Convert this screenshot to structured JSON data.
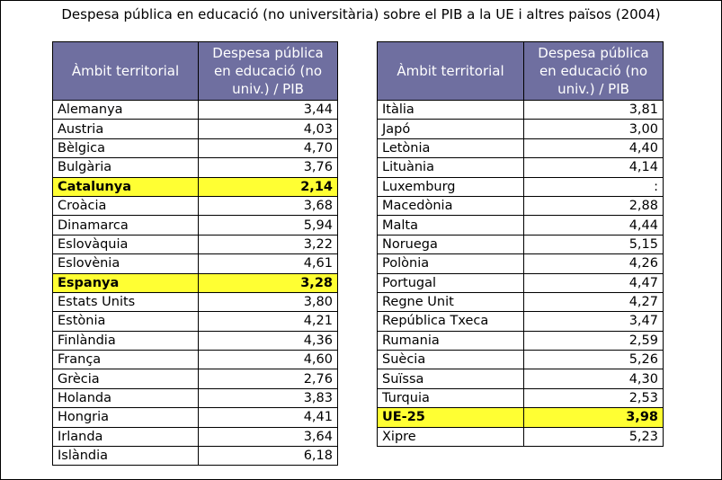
{
  "title": "Despesa pública en educació (no universitària) sobre el PIB a la UE i altres països (2004)",
  "highlight_color": "#ffff33",
  "header_color": "#6f6fa0",
  "columns": {
    "territory": "Àmbit territorial",
    "value": "Despesa pública en educació (no univ.) / PIB"
  },
  "left_table": [
    {
      "name": "Alemanya",
      "value": "3,44",
      "highlight": false
    },
    {
      "name": "Austria",
      "value": "4,03",
      "highlight": false
    },
    {
      "name": "Bèlgica",
      "value": "4,70",
      "highlight": false
    },
    {
      "name": "Bulgària",
      "value": "3,76",
      "highlight": false
    },
    {
      "name": "Catalunya",
      "value": "2,14",
      "highlight": true
    },
    {
      "name": "Croàcia",
      "value": "3,68",
      "highlight": false
    },
    {
      "name": "Dinamarca",
      "value": "5,94",
      "highlight": false
    },
    {
      "name": "Eslovàquia",
      "value": "3,22",
      "highlight": false
    },
    {
      "name": "Eslovènia",
      "value": "4,61",
      "highlight": false
    },
    {
      "name": "Espanya",
      "value": "3,28",
      "highlight": true
    },
    {
      "name": "Estats Units",
      "value": "3,80",
      "highlight": false
    },
    {
      "name": "Estònia",
      "value": "4,21",
      "highlight": false
    },
    {
      "name": "Finlàndia",
      "value": "4,36",
      "highlight": false
    },
    {
      "name": "França",
      "value": "4,60",
      "highlight": false
    },
    {
      "name": "Grècia",
      "value": "2,76",
      "highlight": false
    },
    {
      "name": "Holanda",
      "value": "3,83",
      "highlight": false
    },
    {
      "name": "Hongria",
      "value": "4,41",
      "highlight": false
    },
    {
      "name": "Irlanda",
      "value": "3,64",
      "highlight": false
    },
    {
      "name": "Islàndia",
      "value": "6,18",
      "highlight": false
    }
  ],
  "right_table": [
    {
      "name": "Itàlia",
      "value": "3,81",
      "highlight": false
    },
    {
      "name": "Japó",
      "value": "3,00",
      "highlight": false
    },
    {
      "name": "Letònia",
      "value": "4,40",
      "highlight": false
    },
    {
      "name": "Lituània",
      "value": "4,14",
      "highlight": false
    },
    {
      "name": "Luxemburg",
      "value": ":",
      "highlight": false
    },
    {
      "name": "Macedònia",
      "value": "2,88",
      "highlight": false
    },
    {
      "name": "Malta",
      "value": "4,44",
      "highlight": false
    },
    {
      "name": "Noruega",
      "value": "5,15",
      "highlight": false
    },
    {
      "name": "Polònia",
      "value": "4,26",
      "highlight": false
    },
    {
      "name": "Portugal",
      "value": "4,47",
      "highlight": false
    },
    {
      "name": "Regne Unit",
      "value": "4,27",
      "highlight": false
    },
    {
      "name": "República Txeca",
      "value": "3,47",
      "highlight": false
    },
    {
      "name": "Rumania",
      "value": "2,59",
      "highlight": false
    },
    {
      "name": "Suècia",
      "value": "5,26",
      "highlight": false
    },
    {
      "name": "Suïssa",
      "value": "4,30",
      "highlight": false
    },
    {
      "name": "Turquia",
      "value": "2,53",
      "highlight": false
    },
    {
      "name": "UE-25",
      "value": "3,98",
      "highlight": true
    },
    {
      "name": "Xipre",
      "value": "5,23",
      "highlight": false
    }
  ]
}
